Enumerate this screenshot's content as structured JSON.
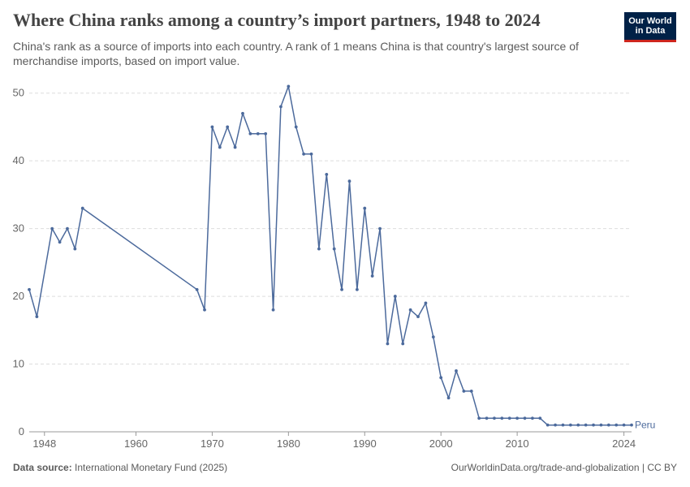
{
  "header": {
    "title": "Where China ranks among a country’s import partners, 1948 to 2024",
    "subtitle": "China's rank as a source of imports into each country. A rank of 1 means China is that country's largest source of merchandise imports, based on import value."
  },
  "logo": {
    "line1": "Our World",
    "line2": "in Data",
    "bg_color": "#002147",
    "accent_color": "#ce261e"
  },
  "footer": {
    "source_label": "Data source:",
    "source_text": "International Monetary Fund (2025)",
    "right_text": "OurWorldinData.org/trade-and-globalization | CC BY"
  },
  "chart_data": {
    "type": "line",
    "title": "Where China ranks among a country’s import partners, 1948 to 2024",
    "xlabel": "",
    "ylabel": "",
    "xlim": [
      1946,
      2025
    ],
    "ylim": [
      0,
      52
    ],
    "x_ticks": [
      1948,
      1960,
      1970,
      1980,
      1990,
      2000,
      2010,
      2024
    ],
    "y_ticks": [
      0,
      10,
      20,
      30,
      40,
      50
    ],
    "grid": true,
    "line_color": "#4c6a9c",
    "series": [
      {
        "name": "Peru",
        "x": [
          1946,
          1947,
          1949,
          1950,
          1951,
          1952,
          1953,
          1968,
          1969,
          1970,
          1971,
          1972,
          1973,
          1974,
          1975,
          1976,
          1977,
          1978,
          1979,
          1980,
          1981,
          1982,
          1983,
          1984,
          1985,
          1986,
          1987,
          1988,
          1989,
          1990,
          1991,
          1992,
          1993,
          1994,
          1995,
          1996,
          1997,
          1998,
          1999,
          2000,
          2001,
          2002,
          2003,
          2004,
          2005,
          2006,
          2007,
          2008,
          2009,
          2010,
          2011,
          2012,
          2013,
          2014,
          2015,
          2016,
          2017,
          2018,
          2019,
          2020,
          2021,
          2022,
          2023,
          2024,
          2025
        ],
        "values": [
          21,
          17,
          30,
          28,
          30,
          27,
          33,
          21,
          18,
          45,
          42,
          45,
          42,
          47,
          44,
          44,
          44,
          18,
          48,
          51,
          45,
          41,
          41,
          27,
          38,
          27,
          21,
          37,
          21,
          33,
          23,
          30,
          13,
          20,
          13,
          18,
          17,
          19,
          14,
          8,
          5,
          9,
          6,
          6,
          2,
          2,
          2,
          2,
          2,
          2,
          2,
          2,
          2,
          1,
          1,
          1,
          1,
          1,
          1,
          1,
          1,
          1,
          1,
          1,
          1
        ]
      }
    ]
  }
}
